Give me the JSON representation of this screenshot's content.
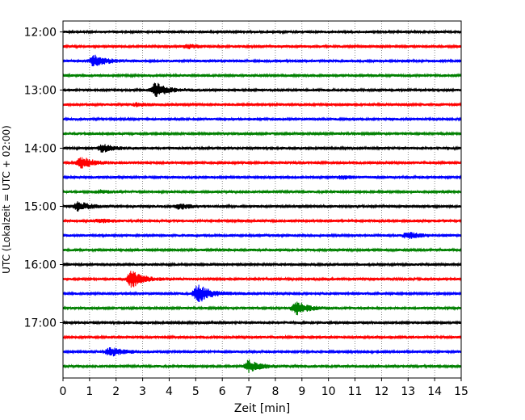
{
  "chart_data": {
    "type": "line",
    "title": "",
    "xlabel": "Zeit  [min]",
    "ylabel": "UTC (Lokalzeit = UTC + 02:00)",
    "xlim": [
      0,
      15
    ],
    "x_ticks": [
      "0",
      "1",
      "2",
      "3",
      "4",
      "5",
      "6",
      "7",
      "8",
      "9",
      "10",
      "11",
      "12",
      "13",
      "14",
      "15"
    ],
    "y_ticks": [
      "12:00",
      "13:00",
      "14:00",
      "15:00",
      "16:00",
      "17:00"
    ],
    "grid": "x-dotted",
    "trace_interval_min": 15,
    "colors": [
      "#000000",
      "#ff0000",
      "#0000ff",
      "#008000"
    ],
    "traces": [
      {
        "start": "12:00",
        "color": "#000000",
        "events": []
      },
      {
        "start": "12:15",
        "color": "#ff0000",
        "events": [
          {
            "t": 4.7,
            "amp": 0.25
          }
        ]
      },
      {
        "start": "12:30",
        "color": "#0000ff",
        "events": [
          {
            "t": 1.2,
            "amp": 0.8
          }
        ]
      },
      {
        "start": "12:45",
        "color": "#008000",
        "events": []
      },
      {
        "start": "13:00",
        "color": "#000000",
        "events": [
          {
            "t": 3.5,
            "amp": 1.0
          }
        ]
      },
      {
        "start": "13:15",
        "color": "#ff0000",
        "events": [
          {
            "t": 2.8,
            "amp": 0.2
          }
        ]
      },
      {
        "start": "13:30",
        "color": "#0000ff",
        "events": []
      },
      {
        "start": "13:45",
        "color": "#008000",
        "events": []
      },
      {
        "start": "14:00",
        "color": "#000000",
        "events": [
          {
            "t": 1.5,
            "amp": 0.5
          }
        ]
      },
      {
        "start": "14:15",
        "color": "#ff0000",
        "events": [
          {
            "t": 0.7,
            "amp": 0.75
          }
        ]
      },
      {
        "start": "14:30",
        "color": "#0000ff",
        "events": [
          {
            "t": 10.5,
            "amp": 0.2
          }
        ]
      },
      {
        "start": "14:45",
        "color": "#008000",
        "events": [
          {
            "t": 1.4,
            "amp": 0.2
          }
        ]
      },
      {
        "start": "15:00",
        "color": "#000000",
        "events": [
          {
            "t": 0.6,
            "amp": 0.6
          },
          {
            "t": 4.4,
            "amp": 0.35
          }
        ]
      },
      {
        "start": "15:15",
        "color": "#ff0000",
        "events": [
          {
            "t": 1.4,
            "amp": 0.2
          }
        ]
      },
      {
        "start": "15:30",
        "color": "#0000ff",
        "events": [
          {
            "t": 13.0,
            "amp": 0.45
          }
        ]
      },
      {
        "start": "15:45",
        "color": "#008000",
        "events": []
      },
      {
        "start": "16:00",
        "color": "#000000",
        "events": []
      },
      {
        "start": "16:15",
        "color": "#ff0000",
        "events": [
          {
            "t": 2.6,
            "amp": 1.1
          }
        ]
      },
      {
        "start": "16:30",
        "color": "#0000ff",
        "events": [
          {
            "t": 5.1,
            "amp": 1.3
          }
        ]
      },
      {
        "start": "16:45",
        "color": "#008000",
        "events": [
          {
            "t": 8.8,
            "amp": 0.9
          }
        ]
      },
      {
        "start": "17:00",
        "color": "#000000",
        "events": []
      },
      {
        "start": "17:15",
        "color": "#ff0000",
        "events": []
      },
      {
        "start": "17:30",
        "color": "#0000ff",
        "events": [
          {
            "t": 1.8,
            "amp": 0.6
          }
        ]
      },
      {
        "start": "17:45",
        "color": "#008000",
        "events": [
          {
            "t": 7.0,
            "amp": 0.8
          }
        ]
      }
    ]
  }
}
